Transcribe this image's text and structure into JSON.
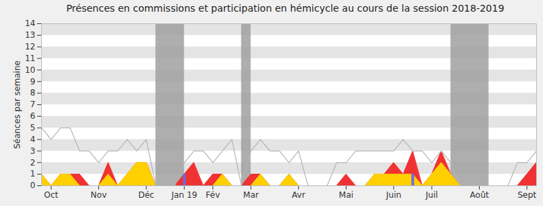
{
  "chart_data": {
    "type": "area",
    "title": "Présences en commissions et participation en hémicycle au cours de la session 2018-2019",
    "y_label": "Séances par semaine",
    "x": [
      0,
      1,
      2,
      3,
      4,
      5,
      6,
      7,
      8,
      9,
      10,
      11,
      12,
      13,
      14,
      15,
      16,
      17,
      18,
      19,
      20,
      21,
      22,
      23,
      24,
      25,
      26,
      27,
      28,
      29,
      30,
      31,
      32,
      33,
      34,
      35,
      36,
      37,
      38,
      39,
      40,
      41,
      42,
      43,
      44,
      45,
      46,
      47,
      48,
      49,
      50,
      51,
      52
    ],
    "xlim": [
      0,
      52
    ],
    "xticks": [
      {
        "value": 1,
        "label": "Oct"
      },
      {
        "value": 6,
        "label": "Nov"
      },
      {
        "value": 11,
        "label": "Déc"
      },
      {
        "value": 15,
        "label": "Jan 19"
      },
      {
        "value": 18,
        "label": "Fév"
      },
      {
        "value": 22,
        "label": "Mar"
      },
      {
        "value": 27,
        "label": "Avr"
      },
      {
        "value": 32,
        "label": "Mai"
      },
      {
        "value": 37,
        "label": "Juin"
      },
      {
        "value": 41,
        "label": "Juil"
      },
      {
        "value": 46,
        "label": "Août"
      },
      {
        "value": 51,
        "label": "Sept"
      }
    ],
    "ylim": [
      0,
      14
    ],
    "yticks": [
      0,
      1,
      2,
      3,
      4,
      5,
      6,
      7,
      8,
      9,
      10,
      11,
      12,
      13,
      14
    ],
    "grid": true,
    "shaded_ranges": [
      [
        12,
        15
      ],
      [
        21,
        22
      ],
      [
        43,
        47
      ]
    ],
    "series": [
      {
        "type": "area",
        "color": "#f03232",
        "values": [
          1,
          0,
          1,
          1,
          1,
          0,
          0,
          2,
          0,
          1,
          2,
          2,
          0,
          0,
          0,
          1,
          2,
          0,
          1,
          1,
          0,
          0,
          1,
          1,
          0,
          0,
          1,
          0,
          0,
          0,
          0,
          0,
          1,
          0,
          0,
          1,
          1,
          2,
          1,
          3,
          0,
          1,
          3,
          1,
          0,
          0,
          0,
          0,
          0,
          0,
          0,
          1,
          2
        ]
      },
      {
        "type": "area",
        "color": "#ffd000",
        "values": [
          1,
          0,
          1,
          1,
          0,
          0,
          0,
          1,
          0,
          1,
          2,
          2,
          0,
          0,
          0,
          0,
          0,
          0,
          0,
          1,
          0,
          0,
          0,
          1,
          0,
          0,
          1,
          0,
          0,
          0,
          0,
          0,
          0,
          0,
          0,
          1,
          1,
          1,
          1,
          1,
          0,
          1,
          2,
          1,
          0,
          0,
          0,
          0,
          0,
          0,
          0,
          0,
          0
        ]
      },
      {
        "type": "bar",
        "color": "#6a6ae0",
        "values": [
          null,
          null,
          null,
          null,
          null,
          null,
          null,
          null,
          null,
          null,
          null,
          null,
          null,
          null,
          null,
          1,
          null,
          null,
          null,
          null,
          null,
          null,
          null,
          null,
          null,
          null,
          null,
          null,
          null,
          null,
          null,
          null,
          null,
          null,
          null,
          null,
          null,
          null,
          null,
          1,
          null,
          null,
          null,
          null,
          null,
          null,
          null,
          null,
          null,
          null,
          null,
          null,
          null
        ]
      },
      {
        "type": "line",
        "color": "#b4b4b4",
        "values": [
          5,
          4,
          5,
          5,
          3,
          3,
          2,
          3,
          3,
          4,
          3,
          4,
          0,
          0,
          0,
          2,
          3,
          3,
          2,
          3,
          4,
          0,
          3,
          4,
          3,
          3,
          2,
          3,
          0,
          0,
          0,
          2,
          2,
          3,
          3,
          3,
          3,
          3,
          4,
          3,
          3,
          2,
          3,
          2,
          0,
          0,
          0,
          0,
          0,
          0,
          2,
          2,
          3
        ]
      }
    ]
  }
}
